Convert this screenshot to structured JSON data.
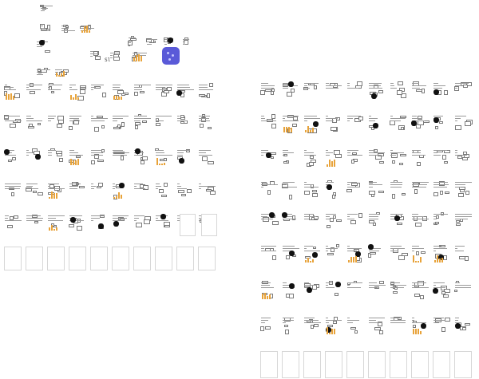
{
  "canvas": {
    "background": "#ffffff",
    "accent_colors": {
      "blue_tile": "#5a5ad8",
      "orange_marks": "#e8a33a",
      "outline": "#d7d7d7",
      "ink": "#111111"
    }
  },
  "labels": {
    "small_number": "6",
    "s1": "Sl"
  },
  "clusters": [
    {
      "name": "top-left-diagrams",
      "items": 14
    },
    {
      "name": "left-thumbnail-grid",
      "items": 60
    },
    {
      "name": "left-blank-pages",
      "items": 12
    },
    {
      "name": "right-thumbnail-grid",
      "items": 96
    },
    {
      "name": "right-blank-pages",
      "items": 11
    }
  ],
  "icons": [
    "board-thumbnail",
    "blank-page",
    "dark-tile",
    "blue-gradient-tile"
  ]
}
